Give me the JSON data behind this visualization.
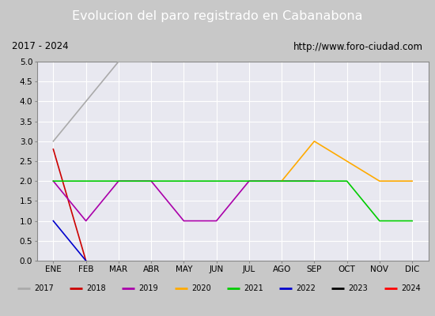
{
  "title": "Evolucion del paro registrado en Cabanabona",
  "subtitle_left": "2017 - 2024",
  "subtitle_right": "http://www.foro-ciudad.com",
  "x_labels": [
    "ENE",
    "FEB",
    "MAR",
    "ABR",
    "MAY",
    "JUN",
    "JUL",
    "AGO",
    "SEP",
    "OCT",
    "NOV",
    "DIC"
  ],
  "ylim": [
    0.0,
    5.0
  ],
  "yticks": [
    0.0,
    0.5,
    1.0,
    1.5,
    2.0,
    2.5,
    3.0,
    3.5,
    4.0,
    4.5,
    5.0
  ],
  "series": [
    {
      "year": "2017",
      "color": "#aaaaaa",
      "data": [
        3.0,
        4.0,
        5.0,
        5.0,
        null,
        null,
        null,
        null,
        null,
        null,
        null,
        null
      ]
    },
    {
      "year": "2018",
      "color": "#cc0000",
      "data": [
        2.8,
        0.0,
        null,
        null,
        null,
        null,
        null,
        null,
        null,
        null,
        null,
        null
      ]
    },
    {
      "year": "2019",
      "color": "#aa00aa",
      "data": [
        2.0,
        1.0,
        2.0,
        2.0,
        1.0,
        1.0,
        2.0,
        2.0,
        2.0,
        null,
        null,
        null
      ]
    },
    {
      "year": "2020",
      "color": "#ffaa00",
      "data": [
        null,
        null,
        null,
        null,
        null,
        null,
        null,
        2.0,
        3.0,
        2.5,
        2.0,
        2.0
      ]
    },
    {
      "year": "2021",
      "color": "#00cc00",
      "data": [
        2.0,
        2.0,
        2.0,
        2.0,
        2.0,
        2.0,
        2.0,
        2.0,
        2.0,
        2.0,
        1.0,
        1.0
      ]
    },
    {
      "year": "2022",
      "color": "#0000cc",
      "data": [
        1.0,
        0.0,
        null,
        null,
        null,
        null,
        null,
        null,
        null,
        null,
        null,
        null
      ]
    },
    {
      "year": "2023",
      "color": "#000000",
      "data": [
        null,
        null,
        null,
        null,
        null,
        null,
        null,
        null,
        null,
        null,
        null,
        null
      ]
    },
    {
      "year": "2024",
      "color": "#ff0000",
      "data": [
        null,
        null,
        null,
        null,
        null,
        null,
        null,
        null,
        null,
        null,
        null,
        null
      ]
    }
  ],
  "title_bg_color": "#4477dd",
  "title_text_color": "#ffffff",
  "subtitle_bg_color": "#f0f0f0",
  "plot_bg_color": "#e8e8f0",
  "legend_bg_color": "#f0f0f0",
  "border_color": "#888888",
  "outer_bg_color": "#c8c8c8"
}
